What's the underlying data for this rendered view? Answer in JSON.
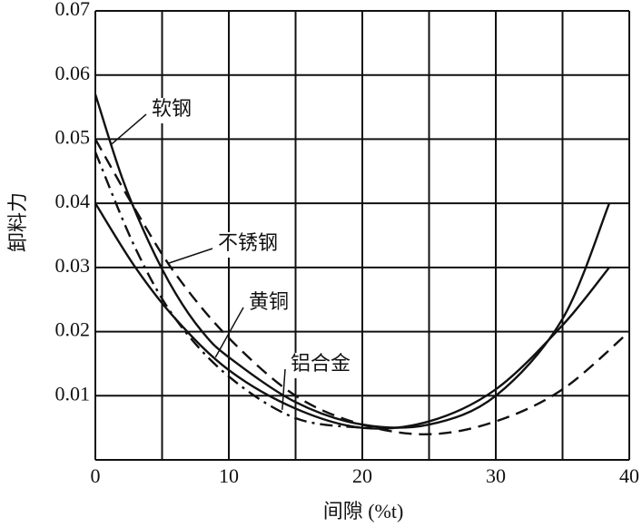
{
  "chart_data": {
    "type": "line",
    "xlabel": "间隙 (%t)",
    "ylabel": "卸料力",
    "xlim": [
      0,
      40
    ],
    "ylim": [
      0,
      0.07
    ],
    "xticks": [
      0,
      10,
      20,
      30,
      40
    ],
    "x_minor_ticks": [
      5,
      15,
      25,
      35
    ],
    "yticks": [
      0.01,
      0.02,
      0.03,
      0.04,
      0.05,
      0.06,
      0.07
    ],
    "grid": true,
    "series": [
      {
        "name": "软钢",
        "color": "#111111",
        "dash": "solid",
        "x": [
          0,
          2,
          4,
          6,
          8,
          10,
          15,
          20,
          25,
          30,
          35,
          38.5
        ],
        "values": [
          0.057,
          0.044,
          0.034,
          0.026,
          0.02,
          0.016,
          0.009,
          0.0055,
          0.0055,
          0.01,
          0.022,
          0.04
        ]
      },
      {
        "name": "不锈钢",
        "color": "#111111",
        "dash": "dashed",
        "x": [
          0,
          3,
          6,
          10,
          15,
          20,
          25,
          30,
          35,
          40
        ],
        "values": [
          0.05,
          0.039,
          0.029,
          0.019,
          0.01,
          0.0055,
          0.004,
          0.006,
          0.011,
          0.02
        ]
      },
      {
        "name": "黄铜",
        "color": "#111111",
        "dash": "solid",
        "x": [
          0,
          3,
          6,
          10,
          15,
          20,
          25,
          30,
          35,
          38.5
        ],
        "values": [
          0.04,
          0.03,
          0.022,
          0.014,
          0.008,
          0.005,
          0.006,
          0.011,
          0.021,
          0.03
        ]
      },
      {
        "name": "铝合金",
        "color": "#111111",
        "dash": "dashdot",
        "x": [
          0,
          3,
          6,
          10,
          15,
          20
        ],
        "values": [
          0.048,
          0.033,
          0.022,
          0.013,
          0.0065,
          0.005
        ]
      }
    ]
  }
}
